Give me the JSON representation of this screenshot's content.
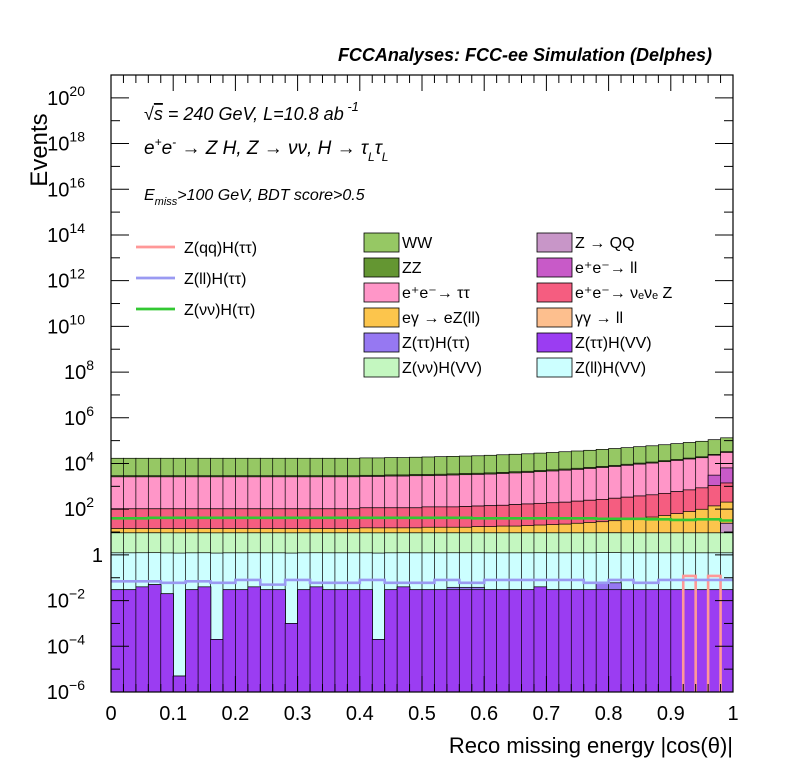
{
  "chart_data": {
    "type": "area",
    "title": "FCCAnalyses: FCC-ee Simulation (Delphes)",
    "xlabel": "Reco missing energy |cos(θ)|",
    "ylabel": "Events",
    "xlim": [
      0,
      1
    ],
    "ylim": [
      1e-06,
      1e+21
    ],
    "log_y": true,
    "grid": false,
    "legend_position": "top",
    "x_ticks": [
      "0",
      "0.1",
      "0.2",
      "0.3",
      "0.4",
      "0.5",
      "0.6",
      "0.7",
      "0.8",
      "0.9",
      "1"
    ],
    "y_ticks": [
      {
        "v": 1e-06,
        "base": "10",
        "exp": "−6"
      },
      {
        "v": 0.0001,
        "base": "10",
        "exp": "−4"
      },
      {
        "v": 0.01,
        "base": "10",
        "exp": "−2"
      },
      {
        "v": 1,
        "base": "1",
        "exp": ""
      },
      {
        "v": 100.0,
        "base": "10",
        "exp": "2"
      },
      {
        "v": 10000.0,
        "base": "10",
        "exp": "4"
      },
      {
        "v": 1000000.0,
        "base": "10",
        "exp": "6"
      },
      {
        "v": 100000000.0,
        "base": "10",
        "exp": "8"
      },
      {
        "v": 10000000000.0,
        "base": "10",
        "exp": "10"
      },
      {
        "v": 1000000000000.0,
        "base": "10",
        "exp": "12"
      },
      {
        "v": 100000000000000.0,
        "base": "10",
        "exp": "14"
      },
      {
        "v": 1e+16,
        "base": "10",
        "exp": "16"
      },
      {
        "v": 1e+18,
        "base": "10",
        "exp": "18"
      },
      {
        "v": 1e+20,
        "base": "10",
        "exp": "20"
      }
    ],
    "annotations": [
      "√s = 240 GeV, L=10.8 ab⁻¹",
      "e⁺e⁻ → Z H, Z → νν, H → τ_L τ_L",
      "E_miss>100 GeV, BDT score>0.5"
    ],
    "bins": 50,
    "stack": [
      {
        "name": "Z(ττ)H(VV)",
        "color": "#9b3df2",
        "values": [
          0.03,
          0.03,
          0.04,
          0.05,
          0.02,
          5e-06,
          0.03,
          0.04,
          0.0002,
          0.03,
          0.03,
          0.04,
          0.03,
          0.03,
          0.001,
          0.03,
          0.04,
          0.03,
          0.03,
          0.03,
          0.03,
          0.0002,
          0.03,
          0.04,
          0.03,
          0.03,
          0.03,
          0.03,
          0.03,
          0.03,
          0.03,
          0.03,
          0.03,
          0.03,
          0.04,
          0.03,
          0.03,
          0.03,
          0.03,
          0.03,
          0.03,
          0.03,
          0.03,
          0.03,
          0.03,
          0.03,
          0.03,
          0.03,
          0.03,
          0.03
        ]
      },
      {
        "name": "Z(ττ)H(ττ)",
        "color": "#9678f2",
        "values": [
          0,
          0,
          0,
          0,
          0,
          0,
          0,
          0,
          0,
          0,
          0,
          0,
          0,
          0,
          0,
          0,
          0,
          0,
          0,
          0,
          0,
          0,
          0,
          0,
          0,
          0,
          0,
          0.0081,
          0.0081,
          0.0081,
          0,
          0,
          0,
          0,
          0,
          0,
          0,
          0,
          0,
          0.03,
          0.03,
          0,
          0,
          0,
          0,
          0,
          0,
          0,
          0,
          0
        ]
      },
      {
        "name": "Z(ll)H(VV)",
        "color": "#ccffff",
        "values": [
          1.2,
          1.2,
          1.2,
          1.2,
          1.2,
          1.2,
          1.2,
          1.2,
          1.2,
          1.2,
          1.2,
          1.2,
          1.2,
          1.2,
          1.2,
          1.2,
          1.2,
          1.2,
          1.2,
          1.2,
          1.2,
          1.2,
          1.2,
          1.2,
          1.2,
          1.2,
          1.2,
          1.2,
          1.2,
          1.2,
          1.2,
          1.2,
          1.2,
          1.2,
          1.2,
          1.2,
          1.2,
          1.2,
          1.2,
          1.2,
          1.2,
          1.2,
          1.2,
          1.2,
          1.2,
          1.2,
          1.2,
          1.2,
          1.2,
          1.2
        ]
      },
      {
        "name": "Z(νν)H(VV)",
        "color": "#c4f7c0",
        "values": [
          8,
          8,
          8,
          8,
          8,
          8,
          8,
          8,
          8,
          8,
          8,
          8,
          8,
          8,
          8,
          8,
          8,
          8,
          8,
          8,
          8,
          8,
          8,
          8,
          8,
          8,
          8,
          8,
          8,
          8,
          8,
          8,
          8,
          8,
          8,
          8,
          8,
          8,
          8,
          8,
          8,
          8,
          8,
          8,
          8,
          8,
          8,
          8,
          8,
          8
        ]
      },
      {
        "name": "Z → QQ",
        "color": "#c896c8",
        "values": [
          0,
          0,
          0,
          0,
          0,
          0,
          0,
          0,
          0,
          0,
          0,
          0,
          0,
          0,
          0,
          0,
          0,
          0,
          0,
          0,
          0,
          0,
          0,
          0,
          0,
          0,
          0,
          0,
          0,
          0,
          0,
          0,
          0,
          0,
          0,
          0,
          0,
          0,
          0,
          0,
          0,
          0,
          0,
          0,
          0,
          0,
          0,
          0,
          0,
          15
        ]
      },
      {
        "name": "γγ → ll",
        "color": "#fdbf8e",
        "values": [
          0,
          0,
          0,
          0,
          0,
          0,
          0,
          0,
          0,
          0,
          0,
          0,
          0,
          0,
          0,
          0,
          0,
          0,
          0,
          0,
          0,
          0,
          0,
          0,
          0,
          0,
          0,
          0,
          0,
          0,
          0,
          0,
          0,
          0,
          0,
          0,
          0,
          0,
          0,
          0,
          0,
          0,
          0,
          0,
          0,
          0,
          0,
          0,
          0,
          0
        ]
      },
      {
        "name": "eγ → eZ(ll)",
        "color": "#fcc54c",
        "values": [
          5,
          5,
          5,
          5,
          5,
          5,
          5,
          5,
          5,
          5,
          5,
          5,
          5,
          5,
          5,
          5,
          5,
          5,
          5,
          5,
          6,
          6,
          6,
          6,
          6,
          7,
          7,
          7,
          7,
          8,
          8,
          9,
          9,
          10,
          11,
          12,
          13,
          15,
          17,
          19,
          22,
          26,
          30,
          36,
          44,
          55,
          70,
          90,
          130,
          180
        ]
      },
      {
        "name": "e⁺e⁻→ νₑνₑ Z",
        "color": "#f55d80",
        "values": [
          90,
          90,
          90,
          90,
          90,
          90,
          90,
          90,
          90,
          90,
          90,
          90,
          90,
          90,
          90,
          90,
          90,
          90,
          90,
          90,
          100,
          100,
          100,
          100,
          100,
          110,
          110,
          110,
          115,
          120,
          125,
          130,
          140,
          150,
          160,
          170,
          180,
          200,
          220,
          240,
          270,
          300,
          340,
          380,
          440,
          520,
          620,
          760,
          950,
          1200
        ]
      },
      {
        "name": "e⁺e⁻→ ll",
        "color": "#c85ac8",
        "values": [
          0,
          0,
          0,
          0,
          0,
          0,
          0,
          0,
          0,
          0,
          0,
          0,
          0,
          0,
          0,
          0,
          0,
          0,
          0,
          0,
          0,
          0,
          0,
          0,
          0,
          0,
          0,
          0,
          0,
          0,
          0,
          0,
          0,
          0,
          0,
          0,
          0,
          0,
          0,
          0,
          0,
          0,
          0,
          0,
          0,
          0,
          0,
          0,
          2000,
          5000
        ]
      },
      {
        "name": "e⁺e⁻→ ττ",
        "color": "#ff96c8",
        "values": [
          2500,
          2500,
          2500,
          2500,
          2500,
          2500,
          2500,
          2500,
          2500,
          2500,
          2500,
          2500,
          2500,
          2500,
          2500,
          2500,
          2500,
          2500,
          2500,
          2500,
          2600,
          2600,
          2700,
          2700,
          2800,
          2800,
          2900,
          3000,
          3100,
          3200,
          3300,
          3500,
          3700,
          3900,
          4200,
          4500,
          4900,
          5300,
          5800,
          6400,
          7100,
          8000,
          9000,
          10000,
          11500,
          13000,
          15000,
          17000,
          20000,
          24000
        ]
      },
      {
        "name": "ZZ",
        "color": "#649632",
        "values": [
          300,
          300,
          300,
          300,
          300,
          300,
          300,
          300,
          300,
          300,
          300,
          300,
          300,
          300,
          300,
          300,
          300,
          300,
          300,
          300,
          320,
          320,
          330,
          330,
          340,
          350,
          360,
          370,
          380,
          400,
          420,
          440,
          460,
          490,
          520,
          560,
          600,
          650,
          700,
          760,
          830,
          910,
          1000,
          1100,
          1200,
          1350,
          1500,
          1700,
          2000,
          2400
        ]
      },
      {
        "name": "WW",
        "color": "#96c864",
        "values": [
          14000,
          14000,
          14000,
          14000,
          14000,
          14000,
          14000,
          14000,
          14000,
          14000,
          14000,
          14000,
          14000,
          14000,
          14000,
          14000,
          14000,
          14000,
          14000,
          14000,
          14500,
          14500,
          15000,
          15000,
          15500,
          16000,
          16500,
          17000,
          17500,
          18000,
          19000,
          20000,
          21000,
          22000,
          23500,
          25000,
          27000,
          29000,
          31000,
          34000,
          37000,
          40000,
          44000,
          48000,
          53000,
          59000,
          66000,
          74000,
          85000,
          100000
        ]
      }
    ],
    "lines": [
      {
        "name": "Z(qq)H(ττ)",
        "color": "#ff9898",
        "values": [
          1e-09,
          1e-09,
          1e-09,
          1e-09,
          1e-09,
          1e-09,
          1e-09,
          1e-09,
          1e-09,
          1e-09,
          1e-09,
          1e-09,
          1e-09,
          1e-09,
          1e-09,
          1e-09,
          1e-09,
          1e-09,
          1e-09,
          1e-09,
          1e-09,
          1e-09,
          1e-09,
          1e-09,
          1e-09,
          1e-09,
          1e-09,
          1e-09,
          1e-09,
          1e-09,
          1e-09,
          1e-09,
          1e-09,
          1e-09,
          1e-09,
          1e-09,
          1e-09,
          1e-09,
          1e-09,
          1e-09,
          1e-09,
          1e-09,
          1e-09,
          1e-09,
          1e-09,
          1e-09,
          0.12,
          1e-09,
          0.12,
          1e-09
        ]
      },
      {
        "name": "Z(ll)H(ττ)",
        "color": "#9a9af2",
        "values": [
          0.07,
          0.07,
          0.07,
          0.07,
          0.06,
          0.06,
          0.07,
          0.07,
          0.06,
          0.06,
          0.08,
          0.08,
          0.05,
          0.05,
          0.08,
          0.08,
          0.06,
          0.06,
          0.06,
          0.06,
          0.08,
          0.08,
          0.06,
          0.06,
          0.06,
          0.06,
          0.08,
          0.08,
          0.06,
          0.06,
          0.08,
          0.08,
          0.08,
          0.08,
          0.08,
          0.08,
          0.08,
          0.08,
          0.06,
          0.06,
          0.08,
          0.08,
          0.06,
          0.06,
          0.08,
          0.08,
          0.08,
          0.08,
          0.08,
          0.08
        ]
      },
      {
        "name": "Z(νν)H(ττ)",
        "color": "#32c832",
        "values": [
          40,
          40,
          40,
          42,
          42,
          42,
          42,
          42,
          42,
          42,
          42,
          42,
          42,
          42,
          42,
          42,
          42,
          42,
          42,
          42,
          42,
          42,
          42,
          42,
          42,
          42,
          42,
          42,
          42,
          40,
          40,
          40,
          40,
          40,
          40,
          40,
          40,
          40,
          40,
          38,
          38,
          38,
          38,
          36,
          36,
          34,
          34,
          36,
          36,
          32
        ]
      }
    ]
  },
  "legend": {
    "lines": [
      "Z(qq)H(ττ)",
      "Z(ll)H(ττ)",
      "Z(νν)H(ττ)"
    ],
    "boxes_col1": [
      "WW",
      "ZZ",
      "e⁺e⁻→ ττ",
      "eγ → eZ(ll)",
      "Z(ττ)H(ττ)",
      "Z(νν)H(VV)"
    ],
    "boxes_col2": [
      "Z → QQ",
      "e⁺e⁻→ ll",
      "e⁺e⁻→ νₑνₑ Z",
      "γγ → ll",
      "Z(ττ)H(VV)",
      "Z(ll)H(VV)"
    ]
  }
}
